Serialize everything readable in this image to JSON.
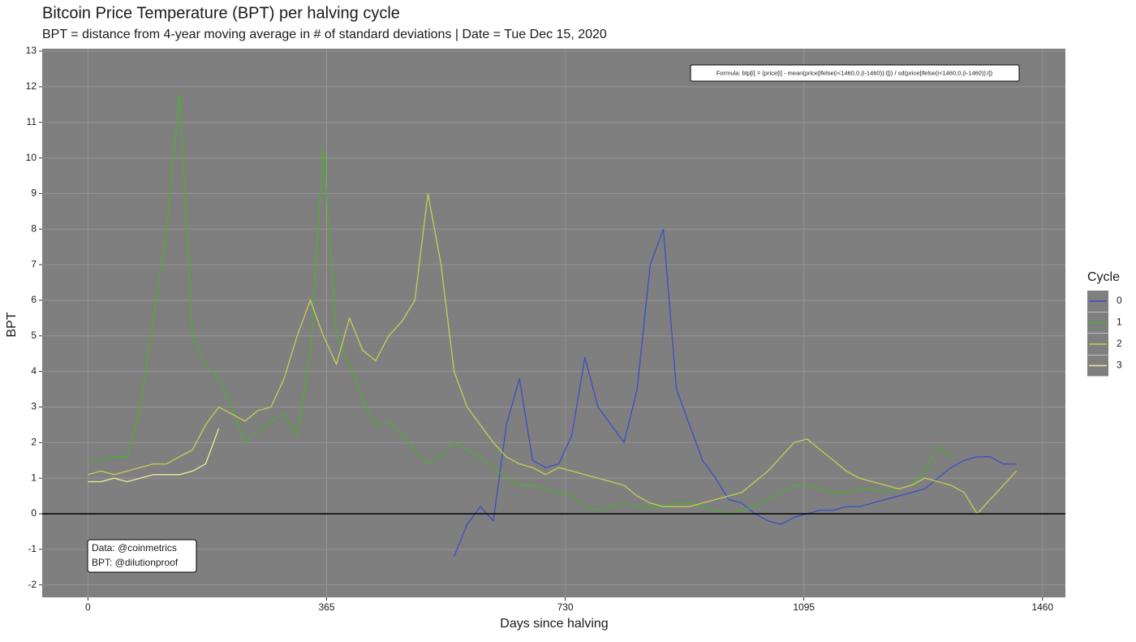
{
  "chart_data": {
    "type": "line",
    "title": "Bitcoin Price Temperature (BPT) per halving cycle",
    "subtitle": "BPT = distance from 4-year moving average in # of standard deviations | Date = Tue Dec 15, 2020",
    "x_label": "Days since halving",
    "y_label": "BPT",
    "legend_title": "Cycle",
    "annotations": [
      "Formula: btp[i] = (price[i] - mean(price[ifelse(i<1460,0,(i-1460)):i])) / sd(price[ifelse(i<1460,0,(i-1460)):i])",
      "Data: @coinmetrics",
      "BPT: @dilutionproof"
    ],
    "x": [
      0,
      20,
      40,
      60,
      80,
      100,
      120,
      140,
      160,
      180,
      200,
      220,
      240,
      260,
      280,
      300,
      320,
      340,
      360,
      380,
      400,
      420,
      440,
      460,
      480,
      500,
      520,
      540,
      560,
      580,
      600,
      620,
      640,
      660,
      680,
      700,
      720,
      740,
      760,
      780,
      800,
      820,
      840,
      860,
      880,
      900,
      920,
      940,
      960,
      980,
      1000,
      1020,
      1040,
      1060,
      1080,
      1100,
      1120,
      1140,
      1160,
      1180,
      1200,
      1220,
      1240,
      1260,
      1280,
      1300,
      1320,
      1340,
      1360,
      1380,
      1400,
      1420,
      1440
    ],
    "series": [
      {
        "name": "0",
        "color": "#3a4fc4",
        "values": [
          null,
          null,
          null,
          null,
          null,
          null,
          null,
          null,
          null,
          null,
          null,
          null,
          null,
          null,
          null,
          null,
          null,
          null,
          null,
          null,
          null,
          null,
          null,
          null,
          null,
          null,
          null,
          null,
          -1.2,
          -0.3,
          0.2,
          -0.2,
          2.5,
          3.8,
          1.5,
          1.3,
          1.4,
          2.2,
          4.4,
          3.0,
          2.5,
          2.0,
          3.5,
          7.0,
          8.0,
          3.5,
          2.5,
          1.5,
          1.0,
          0.4,
          0.3,
          0.0,
          -0.2,
          -0.3,
          -0.1,
          0.0,
          0.1,
          0.1,
          0.2,
          0.2,
          0.3,
          0.4,
          0.5,
          0.6,
          0.7,
          1.0,
          1.3,
          1.5,
          1.6,
          1.6,
          1.4,
          1.4,
          null
        ]
      },
      {
        "name": "1",
        "color": "#4caf30",
        "values": [
          1.5,
          1.5,
          1.6,
          1.6,
          3.0,
          5.5,
          8.0,
          11.8,
          5.0,
          4.2,
          3.8,
          3.0,
          2.0,
          2.3,
          2.6,
          2.8,
          2.2,
          4.5,
          10.3,
          5.0,
          4.2,
          3.2,
          2.5,
          2.6,
          2.2,
          1.8,
          1.4,
          1.6,
          2.0,
          1.8,
          1.6,
          1.3,
          1.0,
          0.8,
          0.8,
          0.7,
          0.6,
          0.5,
          0.2,
          0.1,
          0.2,
          0.3,
          0.2,
          0.2,
          0.2,
          0.3,
          0.3,
          0.2,
          0.1,
          0.0,
          0.1,
          0.2,
          0.4,
          0.6,
          0.8,
          0.8,
          0.7,
          0.6,
          0.6,
          0.7,
          0.7,
          0.6,
          0.7,
          0.8,
          1.2,
          1.9,
          1.6,
          null,
          null,
          null,
          null,
          null,
          null
        ]
      },
      {
        "name": "2",
        "color": "#c5cf55",
        "values": [
          1.1,
          1.2,
          1.1,
          1.2,
          1.3,
          1.4,
          1.4,
          1.6,
          1.8,
          2.5,
          3.0,
          2.8,
          2.6,
          2.9,
          3.0,
          3.8,
          5.0,
          6.0,
          5.0,
          4.2,
          5.5,
          4.6,
          4.3,
          5.0,
          5.4,
          6.0,
          9.0,
          7.0,
          4.0,
          3.0,
          2.5,
          2.0,
          1.6,
          1.4,
          1.3,
          1.1,
          1.3,
          1.2,
          1.1,
          1.0,
          0.9,
          0.8,
          0.5,
          0.3,
          0.2,
          0.2,
          0.2,
          0.3,
          0.4,
          0.5,
          0.6,
          0.9,
          1.2,
          1.6,
          2.0,
          2.1,
          1.8,
          1.5,
          1.2,
          1.0,
          0.9,
          0.8,
          0.7,
          0.8,
          1.0,
          0.9,
          0.8,
          0.6,
          0.0,
          0.4,
          0.8,
          1.2,
          null
        ]
      },
      {
        "name": "3",
        "color": "#eeee99",
        "values": [
          0.9,
          0.9,
          1.0,
          0.9,
          1.0,
          1.1,
          1.1,
          1.1,
          1.2,
          1.4,
          2.4,
          null,
          null,
          null,
          null,
          null,
          null,
          null,
          null,
          null,
          null,
          null,
          null,
          null,
          null,
          null,
          null,
          null,
          null,
          null,
          null,
          null,
          null,
          null,
          null,
          null,
          null,
          null,
          null,
          null,
          null,
          null,
          null,
          null,
          null,
          null,
          null,
          null,
          null,
          null,
          null,
          null,
          null,
          null,
          null,
          null,
          null,
          null,
          null,
          null,
          null,
          null,
          null,
          null,
          null,
          null,
          null,
          null,
          null,
          null,
          null,
          null,
          null
        ]
      }
    ],
    "xlim": [
      -70,
      1495
    ],
    "ylim": [
      -2.35,
      13.07
    ],
    "xticks": [
      0,
      365,
      730,
      1095,
      1460
    ],
    "yticks": [
      -2,
      -1,
      0,
      1,
      2,
      3,
      4,
      5,
      6,
      7,
      8,
      9,
      10,
      11,
      12,
      13
    ],
    "grid": true,
    "hline": 0,
    "legend_position": "right"
  }
}
